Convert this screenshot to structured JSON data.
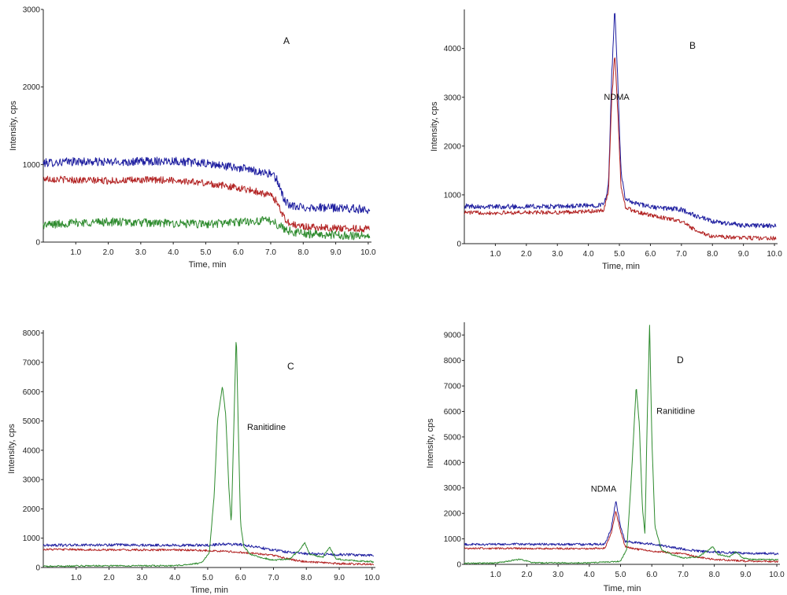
{
  "chart_data": [
    {
      "type": "line",
      "panel": "A",
      "xlabel": "Time, min",
      "ylabel": "Intensity, cps",
      "xlim": [
        0.0,
        10.1
      ],
      "ylim": [
        0,
        3000
      ],
      "yticks": [
        0,
        1000,
        2000,
        3000
      ],
      "xticks": [
        "1.0",
        "2.0",
        "3.0",
        "4.0",
        "5.0",
        "6.0",
        "7.0",
        "8.0",
        "9.0",
        "10.0"
      ],
      "annotations": [],
      "series": [
        {
          "color": "#1f1fa0",
          "x": [
            0.0,
            1.0,
            2.0,
            3.0,
            4.0,
            5.0,
            6.0,
            6.5,
            7.0,
            7.2,
            7.4,
            7.6,
            8.0,
            9.0,
            10.0
          ],
          "y": [
            1020,
            1040,
            1030,
            1040,
            1050,
            1010,
            960,
            920,
            880,
            800,
            560,
            460,
            450,
            440,
            420
          ],
          "noise": 55
        },
        {
          "color": "#b22222",
          "x": [
            0.0,
            1.0,
            2.0,
            3.0,
            4.0,
            5.0,
            6.0,
            6.5,
            7.0,
            7.2,
            7.4,
            7.6,
            8.0,
            9.0,
            10.0
          ],
          "y": [
            820,
            800,
            790,
            800,
            800,
            760,
            700,
            660,
            600,
            520,
            320,
            230,
            200,
            180,
            170
          ],
          "noise": 45
        },
        {
          "color": "#2e8b2e",
          "x": [
            0.0,
            1.0,
            2.0,
            3.0,
            4.0,
            5.0,
            6.0,
            7.0,
            7.2,
            7.5,
            8.0,
            9.0,
            10.0
          ],
          "y": [
            220,
            250,
            260,
            250,
            240,
            230,
            260,
            280,
            230,
            150,
            110,
            90,
            80
          ],
          "noise": 55
        }
      ]
    },
    {
      "type": "line",
      "panel": "B",
      "xlabel": "Time, min",
      "ylabel": "Intensity, cps",
      "xlim": [
        0.0,
        10.1
      ],
      "ylim": [
        0,
        4800
      ],
      "yticks": [
        0,
        1000,
        2000,
        3000,
        4000
      ],
      "xticks": [
        "1.0",
        "2.0",
        "3.0",
        "4.0",
        "5.0",
        "6.0",
        "7.0",
        "8.0",
        "9.0",
        "10.0"
      ],
      "annotations": [
        {
          "text": "NDMA",
          "x": 4.5,
          "y": 2950
        }
      ],
      "series": [
        {
          "color": "#1f1fa0",
          "x": [
            0.0,
            1.0,
            2.0,
            3.0,
            4.0,
            4.5,
            4.65,
            4.75,
            4.85,
            4.95,
            5.05,
            5.2,
            5.5,
            6.0,
            7.0,
            7.5,
            8.0,
            9.0,
            10.0
          ],
          "y": [
            770,
            760,
            760,
            760,
            780,
            800,
            1200,
            3400,
            4800,
            3300,
            1500,
            900,
            830,
            750,
            700,
            560,
            450,
            380,
            360
          ],
          "noise": 50
        },
        {
          "color": "#b22222",
          "x": [
            0.0,
            1.0,
            2.0,
            3.0,
            4.0,
            4.5,
            4.65,
            4.75,
            4.85,
            4.95,
            5.05,
            5.2,
            5.5,
            6.0,
            7.0,
            7.5,
            8.0,
            9.0,
            10.0
          ],
          "y": [
            640,
            630,
            640,
            640,
            660,
            680,
            1100,
            2900,
            3900,
            2700,
            1200,
            740,
            660,
            580,
            460,
            250,
            150,
            120,
            110
          ],
          "noise": 40
        }
      ]
    },
    {
      "type": "line",
      "panel": "C",
      "xlabel": "Time, min",
      "ylabel": "Intensity, cps",
      "xlim": [
        0.0,
        10.1
      ],
      "ylim": [
        0,
        8100
      ],
      "yticks": [
        0,
        1000,
        2000,
        3000,
        4000,
        5000,
        6000,
        7000,
        8000
      ],
      "xticks": [
        "1.0",
        "2.0",
        "3.0",
        "4.0",
        "5.0",
        "6.0",
        "7.0",
        "8.0",
        "9.0",
        "10.0"
      ],
      "annotations": [
        {
          "text": "Ranitidine",
          "x": 6.2,
          "y": 4700
        }
      ],
      "series": [
        {
          "color": "#1f1fa0",
          "x": [
            0.0,
            2.0,
            4.0,
            5.0,
            5.5,
            6.0,
            6.5,
            7.0,
            7.5,
            8.0,
            9.0,
            10.0
          ],
          "y": [
            760,
            770,
            760,
            760,
            800,
            780,
            700,
            600,
            520,
            470,
            440,
            420
          ],
          "noise": 45
        },
        {
          "color": "#b22222",
          "x": [
            0.0,
            2.0,
            4.0,
            5.0,
            6.0,
            7.0,
            7.5,
            8.0,
            9.0,
            10.0
          ],
          "y": [
            620,
            600,
            600,
            580,
            520,
            420,
            280,
            190,
            130,
            110
          ],
          "noise": 35
        },
        {
          "color": "#2e8b2e",
          "x": [
            0.0,
            1.5,
            4.0,
            4.8,
            5.05,
            5.2,
            5.3,
            5.45,
            5.55,
            5.65,
            5.72,
            5.8,
            5.87,
            5.93,
            6.0,
            6.1,
            6.3,
            6.6,
            7.0,
            7.5,
            7.8,
            7.95,
            8.1,
            8.5,
            8.7,
            8.9,
            9.2,
            10.0
          ],
          "y": [
            40,
            60,
            60,
            150,
            500,
            2500,
            5000,
            6200,
            5200,
            2600,
            1500,
            5000,
            8000,
            4800,
            1500,
            700,
            450,
            350,
            250,
            300,
            600,
            850,
            450,
            350,
            700,
            300,
            250,
            200
          ],
          "noise": 25
        }
      ]
    },
    {
      "type": "line",
      "panel": "D",
      "xlabel": "Time, min",
      "ylabel": "Intensity, cps",
      "xlim": [
        0.0,
        10.1
      ],
      "ylim": [
        0,
        9500
      ],
      "yticks": [
        0,
        1000,
        2000,
        3000,
        4000,
        5000,
        6000,
        7000,
        8000,
        9000
      ],
      "xticks": [
        "1.0",
        "2.0",
        "3.0",
        "4.0",
        "5.0",
        "6.0",
        "7.0",
        "8.0",
        "9.0",
        "10.0"
      ],
      "annotations": [
        {
          "text": "NDMA",
          "x": 4.05,
          "y": 2850
        },
        {
          "text": "Ranitidine",
          "x": 6.15,
          "y": 5900
        }
      ],
      "series": [
        {
          "color": "#1f1fa0",
          "x": [
            0.0,
            2.0,
            4.0,
            4.5,
            4.7,
            4.85,
            5.0,
            5.15,
            5.5,
            6.0,
            6.5,
            7.0,
            7.5,
            8.0,
            9.0,
            10.0
          ],
          "y": [
            780,
            790,
            780,
            800,
            1400,
            2500,
            1500,
            900,
            850,
            800,
            700,
            600,
            520,
            480,
            440,
            420
          ],
          "noise": 45
        },
        {
          "color": "#b22222",
          "x": [
            0.0,
            2.0,
            4.0,
            4.5,
            4.7,
            4.85,
            5.0,
            5.15,
            5.5,
            6.0,
            7.0,
            7.5,
            8.0,
            9.0,
            10.0
          ],
          "y": [
            630,
            620,
            620,
            640,
            1200,
            2100,
            1300,
            700,
            600,
            520,
            420,
            280,
            190,
            130,
            110
          ],
          "noise": 35
        },
        {
          "color": "#2e8b2e",
          "x": [
            0.0,
            1.0,
            1.8,
            2.2,
            4.0,
            5.0,
            5.2,
            5.35,
            5.5,
            5.6,
            5.7,
            5.78,
            5.85,
            5.93,
            6.0,
            6.1,
            6.3,
            6.6,
            7.0,
            7.5,
            7.8,
            7.95,
            8.1,
            8.5,
            8.7,
            8.9,
            9.2,
            10.0
          ],
          "y": [
            40,
            50,
            200,
            60,
            60,
            120,
            600,
            3500,
            7000,
            5500,
            2200,
            1200,
            5500,
            9400,
            5000,
            1500,
            600,
            400,
            250,
            300,
            550,
            700,
            400,
            300,
            500,
            250,
            200,
            180
          ],
          "noise": 25
        }
      ]
    }
  ]
}
